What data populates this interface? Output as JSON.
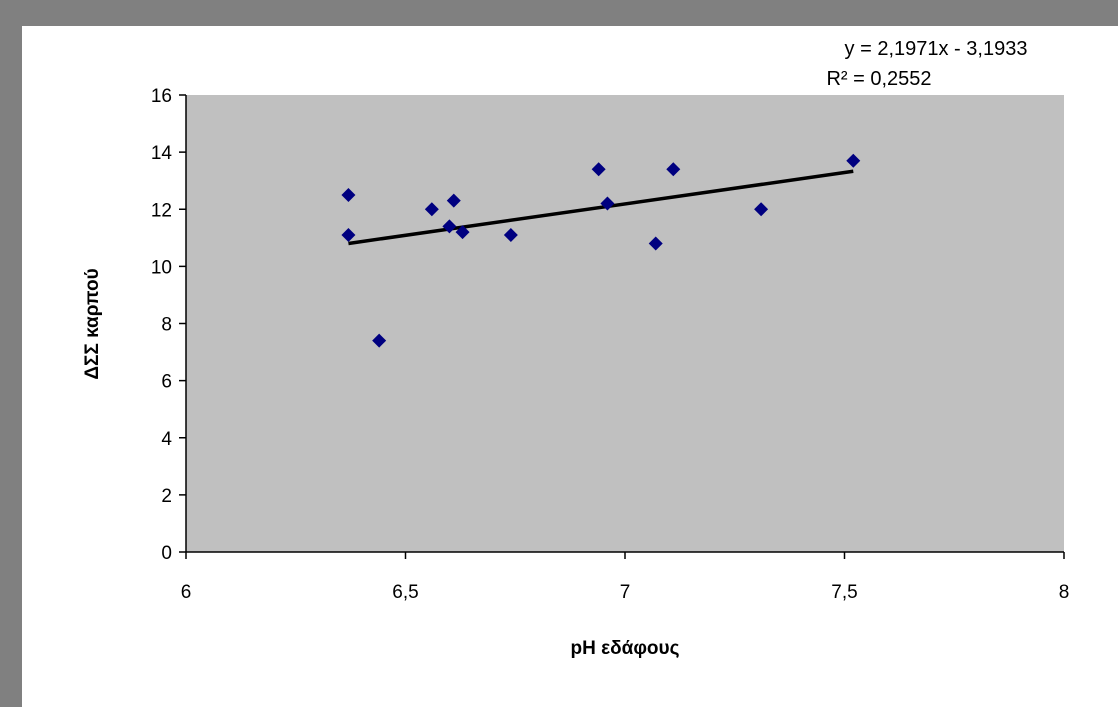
{
  "chart_data": {
    "type": "scatter",
    "xlabel": "pH εδάφους",
    "ylabel": "ΔΣΣ καρπού",
    "xlim": [
      6,
      8
    ],
    "ylim": [
      0,
      16
    ],
    "x_ticks": [
      "6",
      "6,5",
      "7",
      "7,5",
      "8"
    ],
    "x_tick_values": [
      6,
      6.5,
      7,
      7.5,
      8
    ],
    "y_ticks": [
      "0",
      "2",
      "4",
      "6",
      "8",
      "10",
      "12",
      "14",
      "16"
    ],
    "y_tick_values": [
      0,
      2,
      4,
      6,
      8,
      10,
      12,
      14,
      16
    ],
    "grid": false,
    "legend": "none",
    "plot_background": "#c0c0c0",
    "marker_color": "#000080",
    "trendline_color": "#000000",
    "series": [
      {
        "points": [
          {
            "x": 6.37,
            "y": 12.5
          },
          {
            "x": 6.37,
            "y": 11.1
          },
          {
            "x": 6.44,
            "y": 7.4
          },
          {
            "x": 6.56,
            "y": 12.0
          },
          {
            "x": 6.6,
            "y": 11.4
          },
          {
            "x": 6.61,
            "y": 12.3
          },
          {
            "x": 6.63,
            "y": 11.2
          },
          {
            "x": 6.74,
            "y": 11.1
          },
          {
            "x": 6.94,
            "y": 13.4
          },
          {
            "x": 6.96,
            "y": 12.2
          },
          {
            "x": 7.07,
            "y": 10.8
          },
          {
            "x": 7.11,
            "y": 13.4
          },
          {
            "x": 7.31,
            "y": 12.0
          },
          {
            "x": 7.52,
            "y": 13.7
          }
        ]
      }
    ],
    "trendline": {
      "type": "linear",
      "slope": 2.1971,
      "intercept": -3.1933,
      "x_range": [
        6.37,
        7.52
      ],
      "equation_label": "y = 2,1971x - 3,1933",
      "r2_label": "R² = 0,2552"
    }
  }
}
